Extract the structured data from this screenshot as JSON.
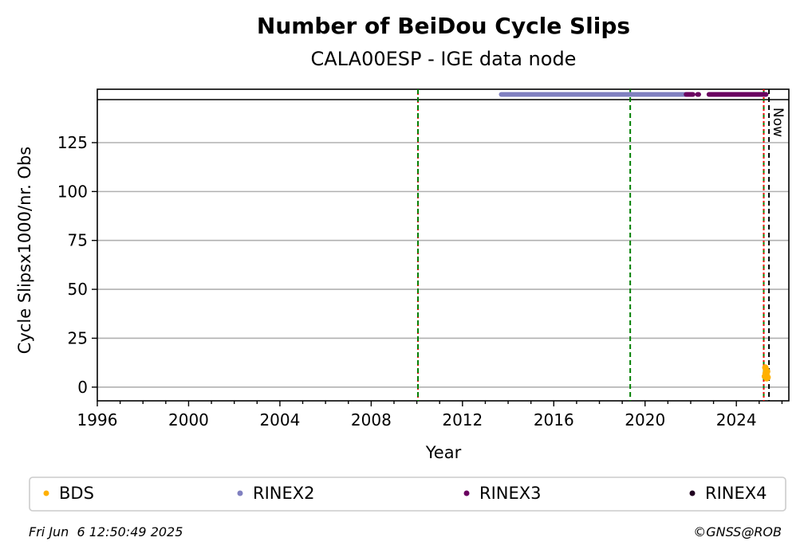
{
  "chart_data": {
    "type": "scatter",
    "title": "Number of BeiDou Cycle Slips",
    "subtitle": "CALA00ESP - IGE data node",
    "xlabel": "Year",
    "ylabel": "Cycle Slipsx1000/nr. Obs",
    "xlim": [
      1996.0,
      2026.3
    ],
    "ylim": [
      -7,
      147
    ],
    "x_ticks": [
      1996,
      2000,
      2004,
      2008,
      2012,
      2016,
      2020,
      2024
    ],
    "y_ticks": [
      0,
      25,
      50,
      75,
      100,
      125
    ],
    "grid": "horizontal",
    "colors": {
      "BDS": "#ffb000",
      "RINEX2": "#8080c0",
      "RINEX3": "#6a0060",
      "RINEX4": "#200020",
      "red_line": "#ff0000",
      "green_line": "#008000",
      "now_line": "#000000"
    },
    "vertical_lines": [
      {
        "x": 2010.05,
        "color": "red",
        "style": "dotted"
      },
      {
        "x": 2010.05,
        "color": "green",
        "style": "dashed"
      },
      {
        "x": 2019.35,
        "color": "green",
        "style": "dashed"
      },
      {
        "x": 2025.2,
        "color": "green",
        "style": "dashed"
      },
      {
        "x": 2025.2,
        "color": "red",
        "style": "dotted"
      },
      {
        "x": 2025.43,
        "color": "black",
        "style": "dashed",
        "label": "Now"
      }
    ],
    "rinex_bars": [
      {
        "name": "RINEX2",
        "segments": [
          [
            2013.7,
            2021.8
          ]
        ]
      },
      {
        "name": "RINEX3",
        "segments": [
          [
            2021.8,
            2022.1
          ],
          [
            2022.3,
            2022.35
          ],
          [
            2022.8,
            2025.3
          ]
        ]
      }
    ],
    "series": [
      {
        "name": "BDS",
        "points": [
          [
            2025.25,
            5.5
          ],
          [
            2025.28,
            7.0
          ],
          [
            2025.3,
            9.0
          ],
          [
            2025.32,
            6.5
          ],
          [
            2025.35,
            8.0
          ],
          [
            2025.37,
            5.0
          ],
          [
            2025.27,
            10.0
          ],
          [
            2025.33,
            4.5
          ]
        ]
      }
    ],
    "legend": {
      "placement": "bottom",
      "entries": [
        "BDS",
        "RINEX2",
        "RINEX3",
        "RINEX4"
      ]
    }
  },
  "footer": {
    "timestamp": "Fri Jun  6 12:50:49 2025",
    "copyright": "©GNSS@ROB"
  }
}
